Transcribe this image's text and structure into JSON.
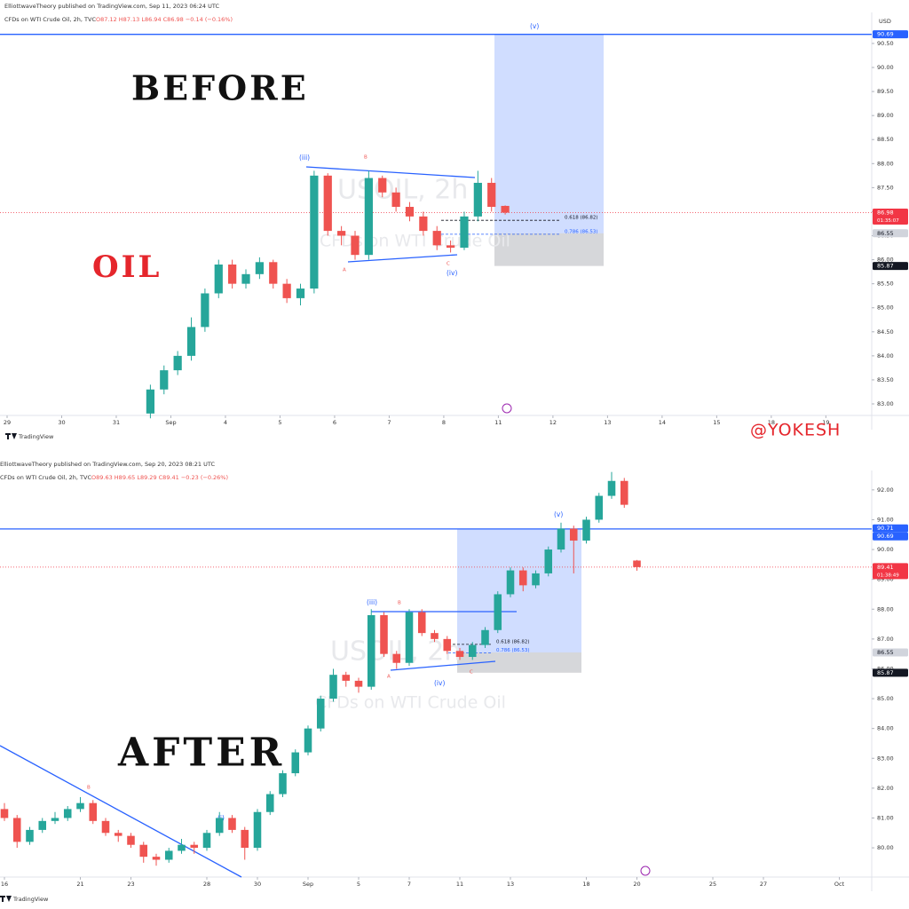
{
  "overlay": {
    "before": "BEFORE",
    "oil": "OIL",
    "after": "AFTER",
    "credit": "@YOKESH"
  },
  "chart_data": [
    {
      "type": "candlestick",
      "publisher": "ElliottwaveTheory published on TradingView.com, Sep 11, 2023 06:24 UTC",
      "symbol_line": "CFDs on WTI Crude Oil, 2h, TVC",
      "ohlc": "O87.12 H87.13 L86.94 C86.98 −0.14 (−0.16%)",
      "currency": "USD",
      "watermark": [
        "USOIL, 2h",
        "CFDs on WTI Crude Oil"
      ],
      "footer": "TradingView",
      "wave_labels": [
        "(iii)",
        "B",
        "A",
        "C",
        "(iv)",
        "(v)"
      ],
      "up_color": "#26a69a",
      "down_color": "#ef5350",
      "xlim": [
        -0.13,
        15.84
      ],
      "ylim": [
        82.76,
        90.85
      ],
      "xticks": [
        {
          "value": 0,
          "label": "29"
        },
        {
          "value": 1,
          "label": "30"
        },
        {
          "value": 2,
          "label": "31"
        },
        {
          "value": 3,
          "label": "Sep"
        },
        4,
        5,
        6,
        7,
        8,
        {
          "value": 9,
          "label": "11"
        },
        {
          "value": 10,
          "label": "12"
        },
        {
          "value": 11,
          "label": "13"
        },
        {
          "value": 12,
          "label": "14"
        },
        {
          "value": 13,
          "label": "15"
        },
        {
          "value": 14,
          "label": "18"
        },
        {
          "value": 15,
          "label": "19"
        }
      ],
      "yticks": [
        {
          "value": 83,
          "label": "83.00"
        },
        {
          "value": 83.5,
          "label": "83.50"
        },
        {
          "value": 84,
          "label": "84.00"
        },
        {
          "value": 84.5,
          "label": "84.50"
        },
        {
          "value": 85,
          "label": "85.00"
        },
        {
          "value": 85.5,
          "label": "85.50"
        },
        {
          "value": 86,
          "label": "86.00"
        },
        {
          "value": 86.5,
          "label": "86.50"
        },
        {
          "value": 87,
          "label": "87.00"
        },
        {
          "value": 87.5,
          "label": "87.50"
        },
        {
          "value": 88,
          "label": "88.00"
        },
        {
          "value": 88.5,
          "label": "88.50"
        },
        {
          "value": 89,
          "label": "89.00"
        },
        {
          "value": 89.5,
          "label": "89.50"
        },
        {
          "value": 90,
          "label": "90.00"
        },
        {
          "value": 90.5,
          "label": "90.50"
        }
      ],
      "x": [
        2.625,
        2.875,
        3.125,
        3.375,
        3.625,
        3.875,
        4.125,
        4.375,
        4.625,
        4.875,
        5.125,
        5.375,
        5.625,
        5.875,
        6.125,
        6.375,
        6.625,
        6.875,
        7.125,
        7.375,
        7.625,
        7.875,
        8.125,
        8.375,
        8.625,
        8.875,
        9.125
      ],
      "open": [
        82.8,
        83.3,
        83.7,
        84.0,
        84.6,
        85.3,
        85.9,
        85.5,
        85.7,
        85.95,
        85.5,
        85.2,
        85.4,
        87.75,
        86.6,
        86.5,
        86.1,
        87.7,
        87.4,
        87.1,
        86.9,
        86.6,
        86.3,
        86.25,
        86.9,
        87.6,
        87.12
      ],
      "high": [
        83.4,
        83.8,
        84.1,
        84.8,
        85.4,
        86.0,
        86.0,
        85.8,
        86.05,
        86.0,
        85.6,
        85.5,
        87.85,
        87.8,
        86.7,
        86.6,
        87.85,
        87.75,
        87.5,
        87.2,
        87.0,
        86.7,
        86.4,
        87.0,
        87.85,
        87.7,
        87.13
      ],
      "low": [
        82.7,
        83.2,
        83.6,
        83.9,
        84.5,
        85.2,
        85.4,
        85.4,
        85.6,
        85.4,
        85.1,
        85.05,
        85.3,
        86.5,
        86.3,
        86.0,
        86.0,
        87.3,
        87.0,
        86.8,
        86.5,
        86.2,
        86.15,
        86.2,
        86.8,
        87.0,
        86.94
      ],
      "close": [
        83.3,
        83.7,
        84.0,
        84.6,
        85.3,
        85.9,
        85.5,
        85.7,
        85.95,
        85.5,
        85.2,
        85.4,
        87.75,
        86.6,
        86.5,
        86.1,
        87.7,
        87.4,
        87.1,
        86.9,
        86.6,
        86.3,
        86.25,
        86.9,
        87.6,
        87.1,
        86.98
      ],
      "hline": 90.69,
      "zone": {
        "top": 90.69,
        "mid": 86.55,
        "bottom": 85.87
      },
      "fib_levels": [
        {
          "value": 86.82,
          "label": "0.618 (86.82)"
        },
        {
          "value": 86.53,
          "label": "0.786 (86.53)"
        }
      ],
      "levels": [
        {
          "value": 90.69,
          "color": "#2962ff",
          "text_color": "#ffffff"
        },
        {
          "value": 86.55,
          "color": "#d1d4dc",
          "text_color": "#131722"
        },
        {
          "value": 85.87,
          "color": "#131722",
          "text_color": "#ffffff"
        }
      ],
      "last_price": {
        "value": 86.98,
        "countdown": "01:35:07",
        "color": "#f23645"
      }
    },
    {
      "type": "candlestick",
      "publisher": "ElliottwaveTheory published on TradingView.com, Sep 20, 2023 08:21 UTC",
      "symbol_line": "CFDs on WTI Crude Oil, 2h, TVC",
      "ohlc": "O89.63 H89.65 L89.29 C89.41 −0.23 (−0.26%)",
      "watermark": [
        "USOIL, 2h",
        "CFDs on WTI Crude Oil"
      ],
      "footer": "TradingView",
      "wave_labels": [
        "(iii)",
        "B",
        "A",
        "C",
        "(iv)",
        "(v)",
        "(i)",
        "B"
      ],
      "up_color": "#26a69a",
      "down_color": "#ef5350",
      "xlim": [
        -0.175,
        34.28
      ],
      "ylim": [
        79.02,
        92.65
      ],
      "xticks": [
        {
          "value": 0,
          "label": "16"
        },
        {
          "value": 3,
          "label": "21"
        },
        {
          "value": 5,
          "label": "23"
        },
        {
          "value": 8,
          "label": "28"
        },
        {
          "value": 10,
          "label": "30"
        },
        {
          "value": 12,
          "label": "Sep"
        },
        {
          "value": 14,
          "label": "5"
        },
        {
          "value": 16,
          "label": "7"
        },
        {
          "value": 18,
          "label": "11"
        },
        {
          "value": 20,
          "label": "13"
        },
        {
          "value": 23,
          "label": "18"
        },
        {
          "value": 25,
          "label": "20"
        },
        {
          "value": 28,
          "label": "25"
        },
        {
          "value": 30,
          "label": "27"
        },
        {
          "value": 33,
          "label": "Oct"
        }
      ],
      "yticks": [
        {
          "value": 80,
          "label": "80.00"
        },
        {
          "value": 81,
          "label": "81.00"
        },
        {
          "value": 82,
          "label": "82.00"
        },
        {
          "value": 83,
          "label": "83.00"
        },
        {
          "value": 84,
          "label": "84.00"
        },
        {
          "value": 85,
          "label": "85.00"
        },
        {
          "value": 86,
          "label": "86.00"
        },
        {
          "value": 87,
          "label": "87.00"
        },
        {
          "value": 88,
          "label": "88.00"
        },
        {
          "value": 89,
          "label": "89.00"
        },
        {
          "value": 90,
          "label": "90.00"
        },
        {
          "value": 91,
          "label": "91.00"
        },
        {
          "value": 92,
          "label": "92.00"
        }
      ],
      "x": [
        0,
        0.5,
        1,
        1.5,
        2,
        2.5,
        3,
        3.5,
        4,
        4.5,
        5,
        5.5,
        6,
        6.5,
        7,
        7.5,
        8,
        8.5,
        9,
        9.5,
        10,
        10.5,
        11,
        11.5,
        12,
        12.5,
        13,
        13.5,
        14,
        14.5,
        15,
        15.5,
        16,
        16.5,
        17,
        17.5,
        18,
        18.5,
        19,
        19.5,
        20,
        20.5,
        21,
        21.5,
        22,
        22.5,
        23,
        23.5,
        24,
        24.5,
        25
      ],
      "open": [
        81.3,
        81.0,
        80.2,
        80.6,
        80.9,
        81.0,
        81.3,
        81.5,
        80.9,
        80.5,
        80.4,
        80.1,
        79.7,
        79.6,
        79.9,
        80.1,
        80.0,
        80.5,
        81.0,
        80.6,
        80.0,
        81.2,
        81.8,
        82.5,
        83.2,
        84.0,
        85.0,
        85.8,
        85.6,
        85.4,
        87.8,
        86.5,
        86.2,
        87.9,
        87.2,
        87.0,
        86.6,
        86.4,
        86.8,
        87.3,
        88.5,
        89.3,
        88.8,
        89.2,
        90.0,
        90.7,
        90.3,
        91.0,
        91.8,
        92.3,
        89.63
      ],
      "high": [
        81.5,
        81.1,
        80.7,
        81.0,
        81.2,
        81.4,
        81.7,
        81.6,
        81.0,
        80.6,
        80.5,
        80.2,
        79.8,
        80.0,
        80.3,
        80.2,
        80.6,
        81.2,
        81.1,
        80.7,
        81.3,
        81.9,
        82.6,
        83.3,
        84.1,
        85.1,
        86.0,
        85.9,
        85.7,
        88.0,
        87.9,
        86.6,
        88.0,
        88.0,
        87.3,
        87.1,
        86.7,
        86.9,
        87.4,
        88.6,
        89.4,
        89.4,
        89.3,
        90.1,
        90.9,
        90.8,
        91.1,
        91.9,
        92.6,
        92.4,
        89.65
      ],
      "low": [
        80.9,
        80.0,
        80.1,
        80.5,
        80.8,
        80.9,
        81.2,
        80.8,
        80.4,
        80.2,
        80.0,
        79.5,
        79.4,
        79.5,
        79.8,
        79.8,
        79.9,
        80.4,
        80.5,
        79.6,
        79.9,
        81.1,
        81.7,
        82.4,
        83.1,
        83.9,
        84.9,
        85.4,
        85.2,
        85.3,
        86.4,
        86.0,
        86.1,
        87.1,
        86.9,
        86.5,
        86.3,
        86.3,
        86.7,
        87.2,
        88.4,
        88.6,
        88.7,
        89.1,
        89.9,
        89.2,
        90.2,
        90.9,
        91.7,
        91.4,
        89.29
      ],
      "close": [
        81.0,
        80.2,
        80.6,
        80.9,
        81.0,
        81.3,
        81.5,
        80.9,
        80.5,
        80.4,
        80.1,
        79.7,
        79.6,
        79.9,
        80.1,
        80.0,
        80.5,
        81.0,
        80.6,
        80.0,
        81.2,
        81.8,
        82.5,
        83.2,
        84.0,
        85.0,
        85.8,
        85.6,
        85.4,
        87.8,
        86.5,
        86.2,
        87.9,
        87.2,
        87.0,
        86.6,
        86.4,
        86.8,
        87.3,
        88.5,
        89.3,
        88.8,
        89.2,
        90.0,
        90.7,
        90.3,
        91.0,
        91.8,
        92.3,
        91.5,
        89.41
      ],
      "hline": 90.69,
      "zone": {
        "top": 90.69,
        "mid": 86.55,
        "bottom": 85.87
      },
      "fib_levels": [
        {
          "value": 86.82,
          "label": "0.618 (86.82)"
        },
        {
          "value": 86.53,
          "label": "0.786 (86.53)"
        }
      ],
      "levels": [
        {
          "value": 90.71,
          "color": "#2962ff",
          "text_color": "#ffffff"
        },
        {
          "value": 90.69,
          "color": "#2962ff",
          "text_color": "#ffffff"
        },
        {
          "value": 86.55,
          "color": "#d1d4dc",
          "text_color": "#131722"
        },
        {
          "value": 85.87,
          "color": "#131722",
          "text_color": "#ffffff"
        }
      ],
      "last_price": {
        "value": 89.41,
        "countdown": "01:38:49",
        "color": "#f23645"
      }
    }
  ]
}
